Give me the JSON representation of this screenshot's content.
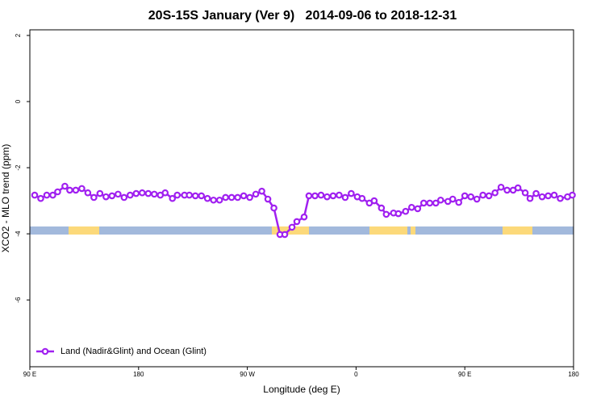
{
  "chart_data": {
    "type": "line",
    "title": "20S-15S January (Ver 9)   2014-09-06 to 2018-12-31",
    "x_label": "Longitude (deg E)",
    "y_label": "XCO2 - MLO trend (ppm)",
    "xlim": [
      90,
      540
    ],
    "ylim": [
      -8.02,
      2.17
    ],
    "xticks": [
      {
        "value": 90,
        "label": "90 E"
      },
      180,
      {
        "value": 270,
        "label": "90 W"
      },
      {
        "value": 360,
        "label": "0"
      },
      {
        "value": 450,
        "label": "90 E"
      },
      {
        "value": 540,
        "label": "180"
      }
    ],
    "yticks": [
      2,
      0,
      -2,
      -4,
      -6
    ],
    "legend": "bottom-left",
    "x": [
      94,
      99,
      104,
      109,
      113,
      119,
      123,
      128,
      133,
      138,
      143,
      148,
      153,
      158,
      163,
      168,
      173,
      178,
      183,
      188,
      193,
      198,
      202,
      208,
      212,
      218,
      222,
      227,
      232,
      237,
      242,
      247,
      252,
      257,
      262,
      267,
      272,
      277,
      282,
      287,
      292,
      297,
      301,
      307,
      311,
      317,
      321,
      326,
      331,
      336,
      341,
      346,
      351,
      356,
      361,
      365,
      371,
      375,
      381,
      385,
      391,
      395,
      401,
      406,
      411,
      416,
      421,
      426,
      430,
      436,
      440,
      445,
      450,
      455,
      460,
      465,
      470,
      475,
      480,
      485,
      490,
      494,
      500,
      504,
      509,
      514,
      519,
      524,
      529,
      535,
      539
    ],
    "series": [
      {
        "name": "Land (Nadir&Glint) and Ocean (Glint)",
        "color": "#a020f0",
        "values": [
          -2.83,
          -2.93,
          -2.83,
          -2.83,
          -2.73,
          -2.56,
          -2.68,
          -2.68,
          -2.63,
          -2.76,
          -2.9,
          -2.78,
          -2.88,
          -2.85,
          -2.8,
          -2.9,
          -2.83,
          -2.78,
          -2.76,
          -2.78,
          -2.8,
          -2.83,
          -2.76,
          -2.93,
          -2.83,
          -2.83,
          -2.83,
          -2.85,
          -2.85,
          -2.93,
          -2.98,
          -2.98,
          -2.9,
          -2.9,
          -2.9,
          -2.85,
          -2.9,
          -2.8,
          -2.71,
          -2.95,
          -3.22,
          -4.02,
          -4.02,
          -3.8,
          -3.63,
          -3.49,
          -2.85,
          -2.85,
          -2.83,
          -2.88,
          -2.85,
          -2.83,
          -2.9,
          -2.78,
          -2.88,
          -2.93,
          -3.07,
          -3.0,
          -3.22,
          -3.41,
          -3.37,
          -3.39,
          -3.32,
          -3.2,
          -3.24,
          -3.07,
          -3.07,
          -3.07,
          -2.98,
          -3.02,
          -2.95,
          -3.05,
          -2.85,
          -2.88,
          -2.95,
          -2.83,
          -2.85,
          -2.76,
          -2.59,
          -2.68,
          -2.68,
          -2.61,
          -2.76,
          -2.93,
          -2.78,
          -2.88,
          -2.85,
          -2.83,
          -2.93,
          -2.88,
          -2.83
        ]
      }
    ]
  }
}
